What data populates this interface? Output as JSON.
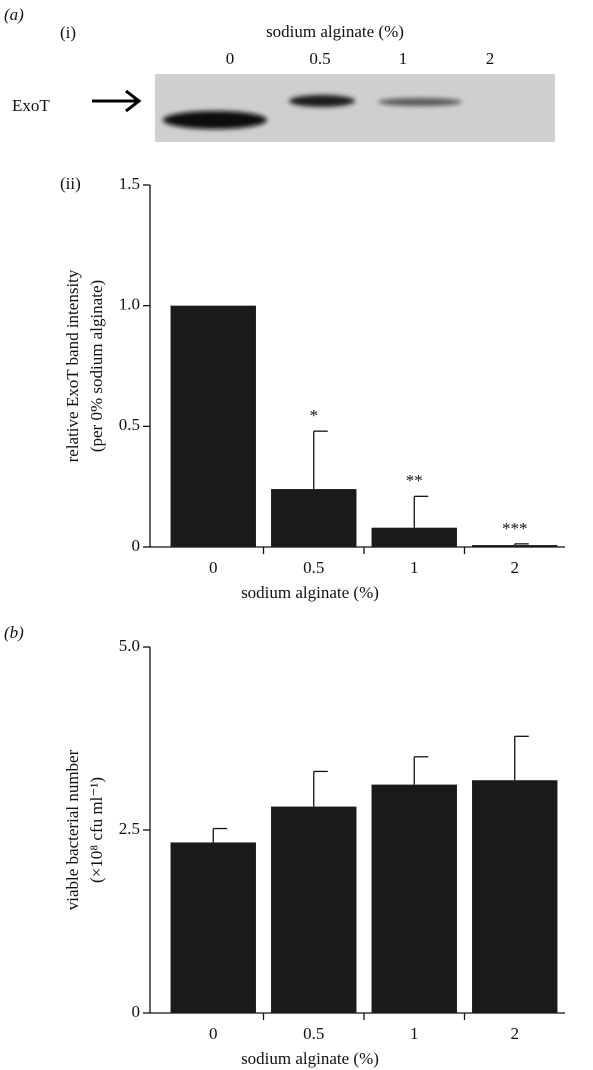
{
  "panels": {
    "a": "(a)",
    "a_i": "(i)",
    "a_ii": "(ii)",
    "b": "(b)"
  },
  "blot": {
    "title": "sodium alginate (%)",
    "lanes": [
      "0",
      "0.5",
      "1",
      "2"
    ],
    "target": "ExoT"
  },
  "chart_data": [
    {
      "type": "bar",
      "categories": [
        "0",
        "0.5",
        "1",
        "2"
      ],
      "values": [
        1.0,
        0.24,
        0.08,
        0.008
      ],
      "errors": [
        0,
        0.24,
        0.13,
        0.005
      ],
      "value_annotations": [
        null,
        "*",
        "**",
        "***"
      ],
      "color": "#1a1a1a",
      "xlabel": "sodium alginate (%)",
      "ylabel": [
        "relative ExoT band intensity",
        "(per 0% sodium alginate)"
      ],
      "ylim": [
        0,
        1.5
      ],
      "yticks": [
        0,
        0.5,
        {
          "value": 1,
          "label": "1.0"
        },
        1.5
      ]
    },
    {
      "type": "bar",
      "categories": [
        "0",
        "0.5",
        "1",
        "2"
      ],
      "values": [
        2.33,
        2.82,
        3.12,
        3.18
      ],
      "errors": [
        0.19,
        0.48,
        0.38,
        0.6
      ],
      "color": "#1a1a1a",
      "xlabel": "sodium alginate (%)",
      "ylabel": [
        "viable bacterial number",
        "(×10⁸ cfu ml⁻¹)"
      ],
      "ylim": [
        0,
        5
      ],
      "yticks": [
        0,
        2.5,
        {
          "value": 5,
          "label": "5.0"
        }
      ]
    }
  ]
}
